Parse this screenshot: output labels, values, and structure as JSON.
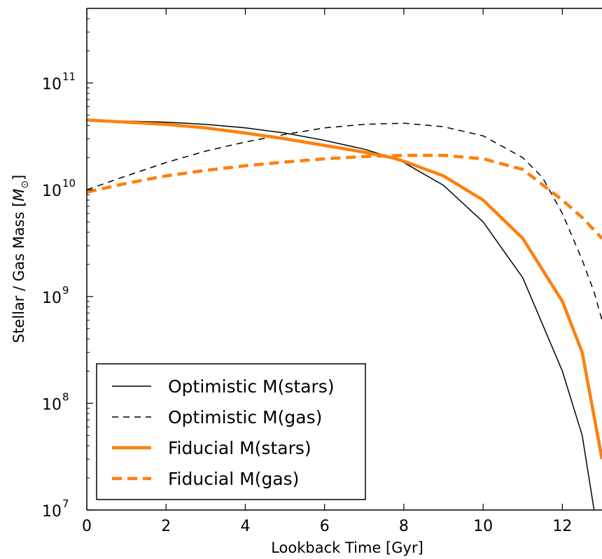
{
  "chart_data": {
    "type": "line",
    "title": "",
    "xlabel": "Lookback Time [Gyr]",
    "ylabel": "Stellar / Gas Mass [",
    "ylabel_unit": "M",
    "ylabel_unit_sub": "⊙",
    "ylabel_close": "]",
    "xlim": [
      0,
      13
    ],
    "ylim": [
      10000000.0,
      500000000000.0
    ],
    "yscale": "log",
    "grid": false,
    "legend_position": "lower-left",
    "x_ticks": [
      {
        "value": 0,
        "label": "0"
      },
      {
        "value": 2,
        "label": "2"
      },
      {
        "value": 4,
        "label": "4"
      },
      {
        "value": 6,
        "label": "6"
      },
      {
        "value": 8,
        "label": "8"
      },
      {
        "value": 10,
        "label": "10"
      },
      {
        "value": 12,
        "label": "12"
      }
    ],
    "y_ticks": [
      {
        "value": 10000000.0,
        "base": "10",
        "exp": "7"
      },
      {
        "value": 100000000.0,
        "base": "10",
        "exp": "8"
      },
      {
        "value": 1000000000.0,
        "base": "10",
        "exp": "9"
      },
      {
        "value": 10000000000.0,
        "base": "10",
        "exp": "10"
      },
      {
        "value": 100000000000.0,
        "base": "10",
        "exp": "11"
      }
    ],
    "series": [
      {
        "name": "Optimistic M(stars)",
        "color": "#000000",
        "style": "solid",
        "width": 1.5,
        "x": [
          0,
          1,
          2,
          3,
          4,
          5,
          6,
          7,
          7.7,
          8,
          9,
          10,
          11,
          12,
          12.5,
          12.8
        ],
        "y": [
          45000000000.0,
          44000000000.0,
          43000000000.0,
          41000000000.0,
          38000000000.0,
          34000000000.0,
          29000000000.0,
          24000000000.0,
          20000000000.0,
          18000000000.0,
          11000000000.0,
          5000000000.0,
          1500000000.0,
          200000000.0,
          50000000.0,
          10000000.0
        ]
      },
      {
        "name": "Optimistic M(gas)",
        "color": "#000000",
        "style": "dashed",
        "width": 1.5,
        "x": [
          0,
          1,
          2,
          3,
          4,
          5,
          6,
          7,
          8,
          9,
          10,
          11,
          11.5,
          12,
          12.5,
          12.8,
          13
        ],
        "y": [
          10000000000.0,
          13500000000.0,
          18000000000.0,
          23000000000.0,
          28000000000.0,
          33000000000.0,
          38000000000.0,
          41000000000.0,
          42000000000.0,
          39000000000.0,
          32000000000.0,
          20000000000.0,
          13000000000.0,
          6000000000.0,
          2200000000.0,
          1100000000.0,
          600000000.0
        ]
      },
      {
        "name": "Fiducial M(stars)",
        "color": "#ff7f0e",
        "style": "solid",
        "width": 4.5,
        "x": [
          0,
          1,
          2,
          3,
          4,
          5,
          6,
          7,
          7.7,
          8,
          9,
          10,
          11,
          12,
          12.5,
          13
        ],
        "y": [
          45000000000.0,
          43000000000.0,
          41000000000.0,
          38000000000.0,
          34000000000.0,
          30000000000.0,
          26000000000.0,
          22500000000.0,
          20000000000.0,
          18500000000.0,
          13500000000.0,
          8000000000.0,
          3500000000.0,
          900000000.0,
          300000000.0,
          30000000.0
        ]
      },
      {
        "name": "Fiducial M(gas)",
        "color": "#ff7f0e",
        "style": "dashed",
        "width": 4.5,
        "x": [
          0,
          1,
          2,
          3,
          4,
          5,
          6,
          7,
          8,
          9,
          10,
          11,
          12,
          12.5,
          13
        ],
        "y": [
          9500000000.0,
          11500000000.0,
          13500000000.0,
          15200000000.0,
          16800000000.0,
          18200000000.0,
          19500000000.0,
          20500000000.0,
          21000000000.0,
          21000000000.0,
          19500000000.0,
          15500000000.0,
          8000000000.0,
          5500000000.0,
          3500000000.0
        ]
      }
    ]
  }
}
